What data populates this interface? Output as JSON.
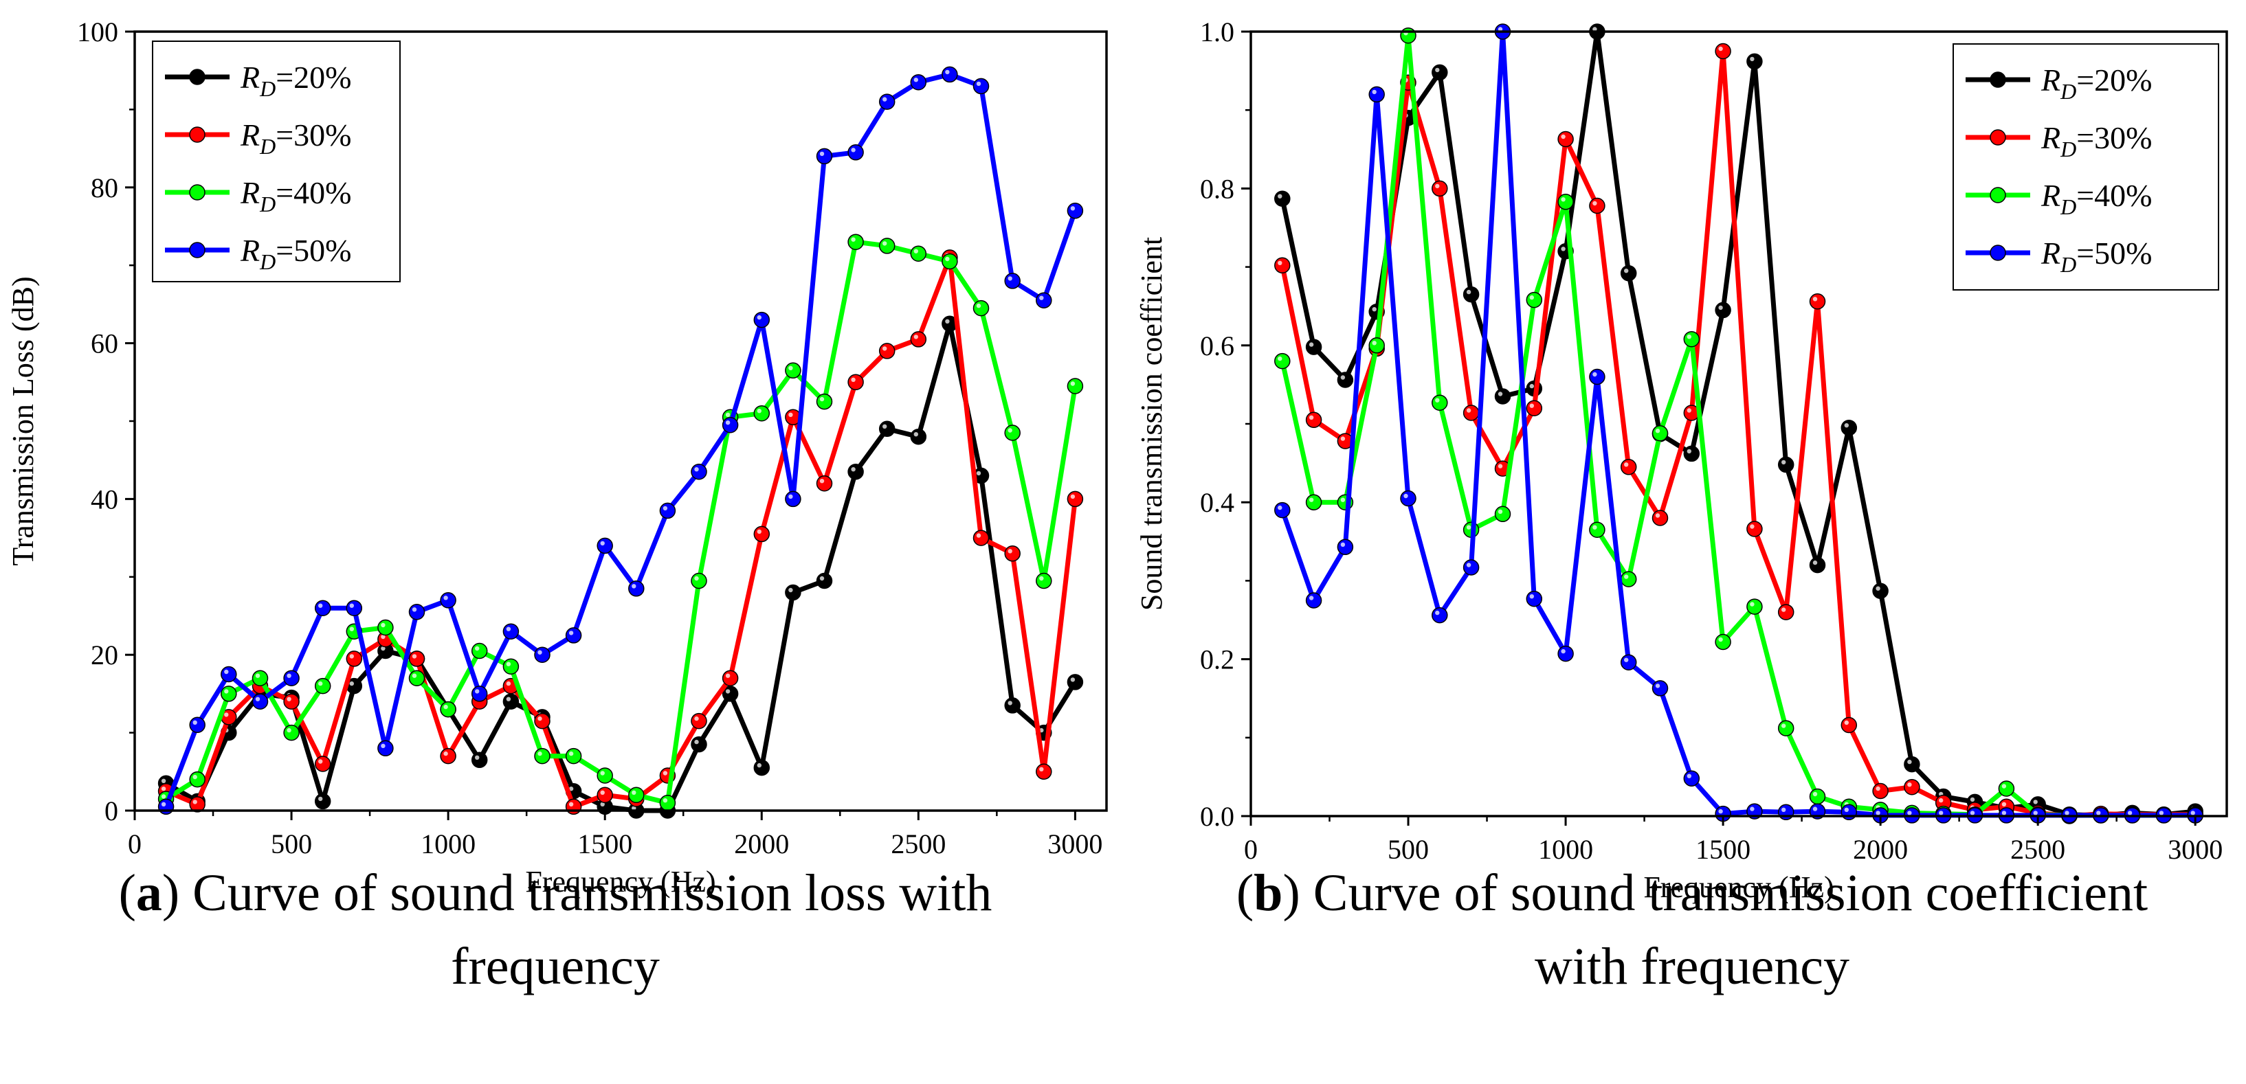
{
  "chart_data": [
    {
      "type": "line",
      "panel_label": "a",
      "caption_rest": ") Curve of sound transmission loss with",
      "caption_line2": "frequency",
      "xlabel": "Frequency (Hz)",
      "ylabel": "Transmission Loss (dB)",
      "xlim": [
        0,
        3100
      ],
      "ylim": [
        0,
        100
      ],
      "xticks": [
        0,
        500,
        1000,
        1500,
        2000,
        2500,
        3000
      ],
      "yticks": [
        0,
        20,
        40,
        60,
        80,
        100
      ],
      "ytick_labels": [
        "0",
        "20",
        "40",
        "60",
        "80",
        "100"
      ],
      "legend_position": "top-left",
      "x": [
        100,
        200,
        300,
        400,
        500,
        600,
        700,
        800,
        900,
        1000,
        1100,
        1200,
        1300,
        1400,
        1500,
        1600,
        1700,
        1800,
        1900,
        2000,
        2100,
        2200,
        2300,
        2400,
        2500,
        2600,
        2700,
        2800,
        2900,
        3000
      ],
      "series": [
        {
          "name_base": "R",
          "name_sub": "D",
          "name_rest": "=20%",
          "color": "#000000",
          "values": [
            3.5,
            1.2,
            10,
            15,
            14.5,
            1.2,
            16,
            20.5,
            19.5,
            13,
            6.5,
            14,
            12,
            2.5,
            0.5,
            0,
            0,
            8.5,
            15,
            5.5,
            28,
            29.5,
            43.5,
            49,
            48,
            62.5,
            43,
            13.5,
            10,
            16.5
          ]
        },
        {
          "name_base": "R",
          "name_sub": "D",
          "name_rest": "=30%",
          "color": "#ff0000",
          "values": [
            2.5,
            0.8,
            12,
            16,
            14,
            6,
            19.5,
            22,
            19.5,
            7,
            14,
            16,
            11.5,
            0.5,
            2,
            1.5,
            4.5,
            11.5,
            17,
            35.5,
            50.5,
            42,
            55,
            59,
            60.5,
            71,
            35,
            33,
            5,
            40
          ]
        },
        {
          "name_base": "R",
          "name_sub": "D",
          "name_rest": "=40%",
          "color": "#00ff00",
          "values": [
            1.5,
            4,
            15,
            17,
            10,
            16,
            23,
            23.5,
            17,
            13,
            20.5,
            18.5,
            7,
            7,
            4.5,
            2,
            1,
            29.5,
            50.5,
            51,
            56.5,
            52.5,
            73,
            72.5,
            71.5,
            70.5,
            64.5,
            48.5,
            29.5,
            54.5
          ]
        },
        {
          "name_base": "R",
          "name_sub": "D",
          "name_rest": "=50%",
          "color": "#0000ff",
          "values": [
            0.5,
            11,
            17.5,
            14,
            17,
            26,
            26,
            8,
            25.5,
            27,
            15,
            23,
            20,
            22.5,
            34,
            28.5,
            38.5,
            43.5,
            49.5,
            63,
            40,
            84,
            84.5,
            91,
            93.5,
            94.5,
            93,
            68,
            65.5,
            77
          ]
        }
      ]
    },
    {
      "type": "line",
      "panel_label": "b",
      "caption_rest": ") Curve of sound transmission coefficient",
      "caption_line2": "with frequency",
      "xlabel": "Frequency (Hz)",
      "ylabel": "Sound transmission coefficient",
      "xlim": [
        0,
        3100
      ],
      "ylim": [
        0,
        1.0
      ],
      "xticks": [
        0,
        500,
        1000,
        1500,
        2000,
        2500,
        3000
      ],
      "yticks": [
        0,
        0.2,
        0.4,
        0.6,
        0.8,
        1.0
      ],
      "ytick_labels": [
        "0.0",
        "0.2",
        "0.4",
        "0.6",
        "0.8",
        "1.0"
      ],
      "legend_position": "top-right",
      "x": [
        100,
        200,
        300,
        400,
        500,
        600,
        700,
        800,
        900,
        1000,
        1100,
        1200,
        1300,
        1400,
        1500,
        1600,
        1700,
        1800,
        1900,
        2000,
        2100,
        2200,
        2300,
        2400,
        2500,
        2600,
        2700,
        2800,
        2900,
        3000
      ],
      "series": [
        {
          "name_base": "R",
          "name_sub": "D",
          "name_rest": "=20%",
          "color": "#000000",
          "values": [
            0.787,
            0.598,
            0.556,
            0.643,
            0.89,
            0.948,
            0.665,
            0.535,
            0.545,
            0.72,
            1.0,
            0.692,
            0.487,
            0.462,
            0.645,
            0.962,
            0.448,
            0.32,
            0.495,
            0.287,
            0.066,
            0.025,
            0.018,
            0.01,
            0.015,
            0.002,
            0.001,
            0.004,
            0.002,
            0.006
          ]
        },
        {
          "name_base": "R",
          "name_sub": "D",
          "name_rest": "=30%",
          "color": "#ff0000",
          "values": [
            0.702,
            0.505,
            0.478,
            0.596,
            0.935,
            0.8,
            0.514,
            0.443,
            0.52,
            0.863,
            0.778,
            0.445,
            0.38,
            0.514,
            0.975,
            0.366,
            0.26,
            0.656,
            0.116,
            0.032,
            0.037,
            0.017,
            0.008,
            0.012,
            0.004,
            0.0,
            0.003,
            0.002,
            0.002,
            0.002
          ]
        },
        {
          "name_base": "R",
          "name_sub": "D",
          "name_rest": "=40%",
          "color": "#00ff00",
          "values": [
            0.58,
            0.4,
            0.4,
            0.6,
            0.995,
            0.527,
            0.365,
            0.385,
            0.658,
            0.783,
            0.365,
            0.302,
            0.488,
            0.608,
            0.222,
            0.267,
            0.112,
            0.025,
            0.012,
            0.008,
            0.004,
            0.003,
            0.002,
            0.035,
            0.002,
            0.001,
            0.001,
            0.001,
            0.001,
            0.001
          ]
        },
        {
          "name_base": "R",
          "name_sub": "D",
          "name_rest": "=50%",
          "color": "#0000ff",
          "values": [
            0.39,
            0.275,
            0.343,
            0.92,
            0.405,
            0.256,
            0.317,
            1.0,
            0.277,
            0.207,
            0.56,
            0.196,
            0.163,
            0.048,
            0.003,
            0.006,
            0.005,
            0.006,
            0.005,
            0.001,
            0.001,
            0.001,
            0.001,
            0.001,
            0.001,
            0.001,
            0.001,
            0.001,
            0.001,
            0.001
          ]
        }
      ]
    }
  ]
}
